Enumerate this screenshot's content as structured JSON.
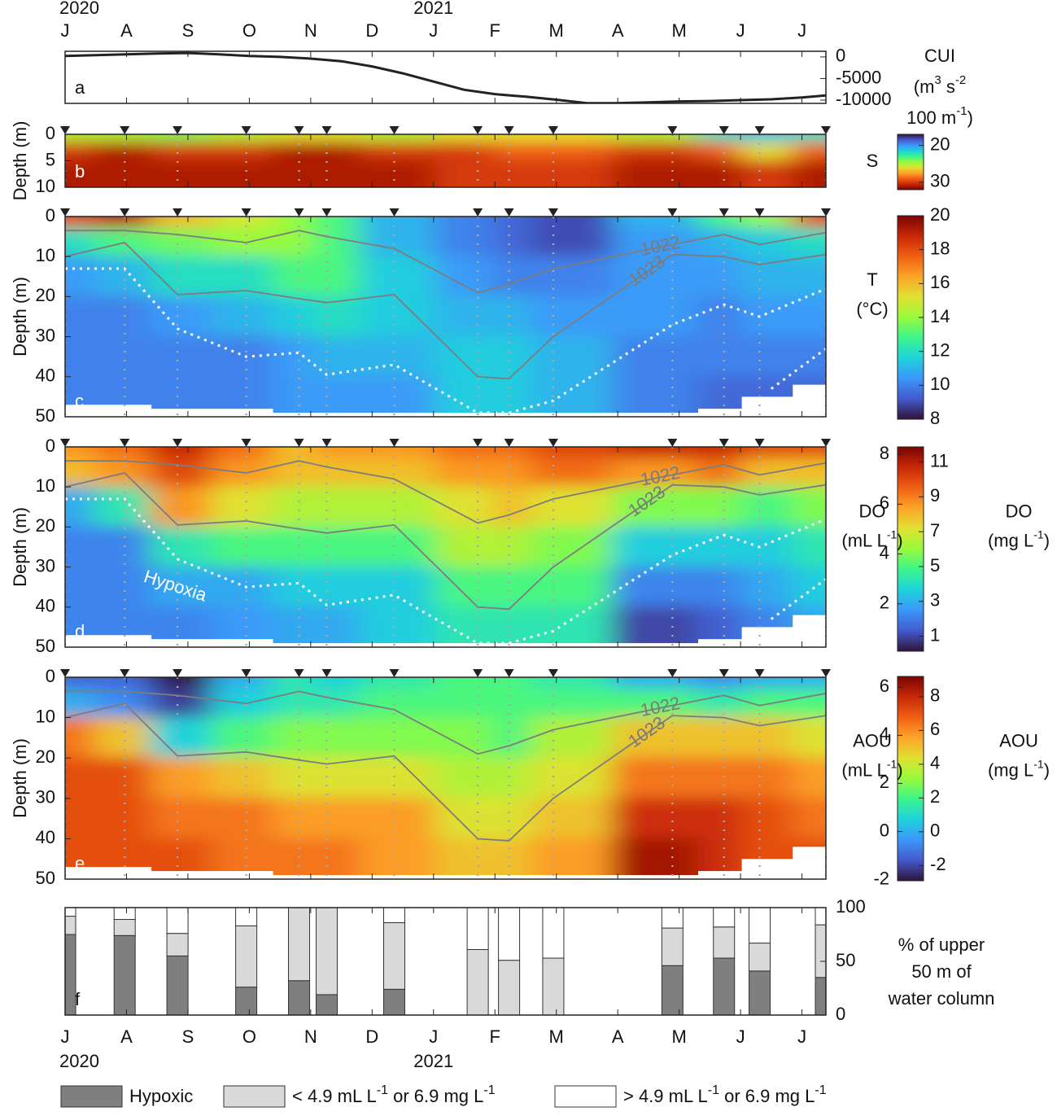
{
  "chart_data": [
    {
      "type": "line",
      "label": "a",
      "ylabel": [
        [
          "CUI"
        ],
        [
          "(m",
          "3",
          " s",
          "-2"
        ],
        [
          "100 m",
          "-1",
          ")"
        ]
      ],
      "x": [
        0,
        0.5,
        1,
        1.5,
        2,
        2.5,
        3,
        3.5,
        4,
        4.5,
        5,
        5.5,
        6,
        6.5,
        7,
        7.5,
        8,
        8.5,
        9,
        9.5,
        10,
        10.5,
        11,
        11.5,
        12,
        12.39
      ],
      "values": [
        200,
        400,
        600,
        800,
        900,
        600,
        200,
        0,
        -400,
        -1000,
        -2200,
        -3800,
        -5700,
        -7600,
        -8600,
        -9200,
        -9900,
        -10700,
        -10700,
        -10500,
        -10300,
        -10200,
        -10000,
        -9800,
        -9400,
        -8900
      ],
      "color": "#222222",
      "xlim": [
        0,
        12.39
      ],
      "xticks": [
        {
          "value": 0,
          "label": "J"
        },
        {
          "value": 1,
          "label": "A"
        },
        {
          "value": 2,
          "label": "S"
        },
        {
          "value": 3,
          "label": "O"
        },
        {
          "value": 4,
          "label": "N"
        },
        {
          "value": 5,
          "label": "D"
        },
        {
          "value": 6,
          "label": "J"
        },
        {
          "value": 7,
          "label": "F"
        },
        {
          "value": 8,
          "label": "M"
        },
        {
          "value": 9,
          "label": "A"
        },
        {
          "value": 10,
          "label": "M"
        },
        {
          "value": 11,
          "label": "J"
        },
        {
          "value": 12,
          "label": "J"
        }
      ],
      "year_labels": [
        {
          "value": 0,
          "label": "2020"
        },
        {
          "value": 6,
          "label": "2021"
        }
      ],
      "ylim": [
        -10750,
        1300
      ],
      "yticks": [
        0,
        -5000,
        -10000
      ]
    },
    {
      "type": "heatmap",
      "label": "b",
      "ylabel": "Depth (m)",
      "yreverse": true,
      "x": [
        0,
        0.97,
        1.83,
        2.95,
        3.81,
        4.26,
        5.36,
        6.72,
        7.23,
        7.95,
        9.89,
        10.73,
        11.31,
        12.39
      ],
      "depth_edges": [
        0,
        1.5,
        5,
        10
      ],
      "values": [
        [
          25,
          30,
          31
        ],
        [
          25,
          31,
          31
        ],
        [
          24,
          30,
          31
        ],
        [
          25,
          30,
          31
        ],
        [
          26,
          31,
          31
        ],
        [
          26,
          31,
          31
        ],
        [
          25,
          30,
          31
        ],
        [
          26,
          30,
          30
        ],
        [
          26,
          29,
          30
        ],
        [
          26,
          29,
          30
        ],
        [
          25,
          30,
          31
        ],
        [
          22,
          29,
          31
        ],
        [
          21,
          26,
          30
        ],
        [
          22,
          29,
          31
        ]
      ],
      "xlim": [
        0,
        12.39
      ],
      "xticks": [
        0,
        1,
        2,
        3,
        4,
        5,
        6,
        7,
        8,
        9,
        10,
        11,
        12
      ],
      "ylim": [
        0,
        10
      ],
      "yticks": [
        0,
        5,
        10
      ],
      "clim": [
        17,
        32
      ],
      "cticks": [
        20,
        30
      ],
      "colorbar_reversed": true,
      "clabel": [
        [
          "S"
        ]
      ]
    },
    {
      "type": "heatmap",
      "label": "c",
      "ylabel": "Depth (m)",
      "yreverse": true,
      "x": [
        0,
        0.97,
        1.83,
        2.95,
        3.81,
        4.26,
        5.36,
        6.72,
        7.23,
        7.95,
        9.89,
        10.73,
        11.31,
        12.39
      ],
      "depth_edges": [
        0,
        3,
        10,
        20,
        30,
        40,
        50
      ],
      "values": [
        [
          18,
          12,
          10.5,
          10,
          10,
          10
        ],
        [
          19,
          13,
          11,
          10,
          10,
          10
        ],
        [
          16,
          13.5,
          12,
          10.5,
          10,
          10
        ],
        [
          15,
          14,
          12,
          11,
          10,
          10
        ],
        [
          14,
          14,
          13,
          11.5,
          10.5,
          10.5
        ],
        [
          13,
          13,
          13,
          12,
          11,
          10.5
        ],
        [
          11,
          11,
          11.5,
          11.5,
          11,
          10.5
        ],
        [
          10,
          10,
          10.5,
          11,
          11.5,
          11.5
        ],
        [
          9.5,
          9.5,
          10,
          11,
          11.5,
          11.5
        ],
        [
          9,
          9,
          10,
          10.5,
          11,
          11
        ],
        [
          11,
          10.5,
          10.5,
          10.5,
          10,
          10
        ],
        [
          13,
          11,
          10.5,
          10,
          10,
          9.5
        ],
        [
          14,
          11.5,
          11,
          10.5,
          10,
          9.5
        ],
        [
          18,
          12,
          11,
          10.5,
          10,
          9.5
        ]
      ],
      "bottom_depth": [
        47,
        47,
        48,
        48,
        49,
        49,
        49,
        49,
        49,
        49,
        49,
        48,
        45,
        42
      ],
      "contours": [
        {
          "name": "1022",
          "values": [
            3.5,
            3.5,
            4.5,
            6.5,
            3.5,
            5,
            8,
            19,
            17,
            13,
            7,
            4.5,
            7,
            4
          ]
        },
        {
          "name": "1023",
          "values": [
            10,
            6.5,
            19.5,
            18.5,
            20.5,
            21.5,
            19.5,
            40,
            40.5,
            30,
            9.5,
            10,
            12,
            9.5
          ]
        }
      ],
      "dotted": [
        {
          "x": [
            0,
            0.97,
            1.83,
            2.95,
            3.81,
            4.26,
            5.36,
            6.72,
            7.23,
            7.95,
            9.89,
            10.73,
            11.31,
            12.39
          ],
          "values": [
            13,
            13,
            28,
            35,
            34,
            39.5,
            37,
            49,
            49,
            46,
            27,
            22,
            25,
            18
          ]
        },
        {
          "x": [
            11.5,
            12.39
          ],
          "values": [
            43,
            33
          ]
        }
      ],
      "xlim": [
        0,
        12.39
      ],
      "xticks": [
        0,
        1,
        2,
        3,
        4,
        5,
        6,
        7,
        8,
        9,
        10,
        11,
        12
      ],
      "ylim": [
        0,
        50
      ],
      "yticks": [
        0,
        10,
        20,
        30,
        40,
        50
      ],
      "clim": [
        8,
        20
      ],
      "cticks": [
        8,
        10,
        12,
        14,
        16,
        18,
        20
      ],
      "clabel": [
        [
          "T"
        ],
        [
          "(°C)"
        ]
      ]
    },
    {
      "type": "heatmap",
      "label": "d",
      "ylabel": "Depth (m)",
      "yreverse": true,
      "annotation": "Hypoxia",
      "x": [
        0,
        0.97,
        1.83,
        2.95,
        3.81,
        4.26,
        5.36,
        6.72,
        7.23,
        7.95,
        9.89,
        10.73,
        11.31,
        12.39
      ],
      "depth_edges": [
        0,
        3,
        10,
        20,
        30,
        40,
        50
      ],
      "values": [
        [
          6,
          5.5,
          2,
          1.5,
          1.5,
          1.5
        ],
        [
          6.5,
          6,
          3,
          1.5,
          1.5,
          1.5
        ],
        [
          7.5,
          7,
          6,
          3,
          2,
          1.5
        ],
        [
          6.5,
          6,
          5,
          3.5,
          2,
          1.8
        ],
        [
          5.5,
          5.5,
          4.5,
          3.5,
          2.5,
          2
        ],
        [
          6,
          5.5,
          4.5,
          3.5,
          2.5,
          2
        ],
        [
          6,
          5.5,
          4.5,
          3.5,
          2.5,
          2.5
        ],
        [
          6.5,
          6,
          5,
          4.5,
          3.5,
          3
        ],
        [
          6.5,
          6,
          5.5,
          4.5,
          3.5,
          3
        ],
        [
          7,
          6.5,
          5,
          4,
          3.5,
          3
        ],
        [
          7.5,
          6,
          4,
          2.5,
          1.5,
          0.7
        ],
        [
          7.5,
          6.5,
          4,
          2.5,
          1.5,
          1
        ],
        [
          7,
          5.5,
          3.5,
          2.5,
          2,
          1.5
        ],
        [
          7,
          5.5,
          4,
          3,
          2.5,
          2
        ]
      ],
      "bottom_depth": [
        47,
        47,
        48,
        48,
        49,
        49,
        49,
        49,
        49,
        49,
        49,
        48,
        45,
        42
      ],
      "contours": [
        {
          "name": "1022",
          "values": [
            3.5,
            3.5,
            4.5,
            6.5,
            3.5,
            5,
            8,
            19,
            17,
            13,
            7,
            4.5,
            7,
            4
          ]
        },
        {
          "name": "1023",
          "values": [
            10,
            6.5,
            19.5,
            18.5,
            20.5,
            21.5,
            19.5,
            40,
            40.5,
            30,
            9.5,
            10,
            12,
            9.5
          ]
        }
      ],
      "dotted": [
        {
          "x": [
            0,
            0.97,
            1.83,
            2.95,
            3.81,
            4.26,
            5.36,
            6.72,
            7.23,
            7.95,
            9.89,
            10.73,
            11.31,
            12.39
          ],
          "values": [
            13,
            13,
            28,
            35,
            34,
            39.5,
            37,
            49,
            49,
            46,
            27,
            22,
            25,
            18
          ]
        },
        {
          "x": [
            11.5,
            12.39
          ],
          "values": [
            43,
            33
          ]
        }
      ],
      "xlim": [
        0,
        12.39
      ],
      "xticks": [
        0,
        1,
        2,
        3,
        4,
        5,
        6,
        7,
        8,
        9,
        10,
        11,
        12
      ],
      "ylim": [
        0,
        50
      ],
      "yticks": [
        0,
        10,
        20,
        30,
        40,
        50
      ],
      "clim": [
        0.1,
        8.3
      ],
      "cticks": [
        2,
        4,
        6,
        8
      ],
      "clabel": [
        [
          "DO"
        ],
        [
          "(mL L",
          "-1",
          ")"
        ]
      ],
      "c2lim": [
        0.14,
        11.87
      ],
      "c2ticks": [
        1,
        3,
        5,
        7,
        9,
        11
      ],
      "c2label": [
        [
          "DO"
        ],
        [
          "(mg L",
          "-1",
          ")"
        ]
      ]
    },
    {
      "type": "heatmap",
      "label": "e",
      "ylabel": "Depth (m)",
      "yreverse": true,
      "x": [
        0,
        0.97,
        1.83,
        2.95,
        3.81,
        4.26,
        5.36,
        6.72,
        7.23,
        7.95,
        9.89,
        10.73,
        11.31,
        12.39
      ],
      "depth_edges": [
        0,
        3,
        10,
        20,
        30,
        40,
        50
      ],
      "values": [
        [
          -1,
          0,
          4.5,
          5,
          5,
          5
        ],
        [
          -1,
          -0.5,
          3.5,
          5,
          5,
          5
        ],
        [
          -2,
          -1.5,
          0.5,
          4,
          4.5,
          5
        ],
        [
          0,
          0.5,
          1.5,
          3.5,
          4.5,
          4.5
        ],
        [
          1,
          1,
          2,
          3,
          4,
          4.5
        ],
        [
          0.5,
          1,
          2,
          3,
          4,
          4.5
        ],
        [
          1,
          1.5,
          2,
          3,
          4,
          4
        ],
        [
          1.5,
          1.5,
          2,
          2.5,
          3,
          3.5
        ],
        [
          1.5,
          1.5,
          1.5,
          2.5,
          3,
          3.5
        ],
        [
          1,
          1.5,
          2.5,
          3,
          3.5,
          4
        ],
        [
          0,
          1.5,
          3.5,
          4.5,
          5.5,
          6
        ],
        [
          -0.5,
          1,
          3.5,
          4.5,
          5.5,
          5.5
        ],
        [
          0,
          1.5,
          3.5,
          4.5,
          5,
          5
        ],
        [
          0,
          1.5,
          3,
          4,
          4.5,
          5
        ]
      ],
      "bottom_depth": [
        47,
        47,
        48,
        48,
        49,
        49,
        49,
        49,
        49,
        49,
        49,
        48,
        45,
        42
      ],
      "contours": [
        {
          "name": "1022",
          "values": [
            3.5,
            3.5,
            4.5,
            6.5,
            3.5,
            5,
            8,
            19,
            17,
            13,
            7,
            4.5,
            7,
            4
          ]
        },
        {
          "name": "1023",
          "values": [
            10,
            6.5,
            19.5,
            18.5,
            20.5,
            21.5,
            19.5,
            40,
            40.5,
            30,
            9.5,
            10,
            12,
            9.5
          ]
        }
      ],
      "xlim": [
        0,
        12.39
      ],
      "xticks": [
        0,
        1,
        2,
        3,
        4,
        5,
        6,
        7,
        8,
        9,
        10,
        11,
        12
      ],
      "ylim": [
        0,
        50
      ],
      "yticks": [
        0,
        10,
        20,
        30,
        40,
        50
      ],
      "clim": [
        -2.05,
        6.45
      ],
      "cticks": [
        -2,
        0,
        2,
        4,
        6
      ],
      "clabel": [
        [
          "AOU"
        ],
        [
          "(mL L",
          "-1",
          ")"
        ]
      ],
      "c2lim": [
        -2.9,
        9.2
      ],
      "c2ticks": [
        -2,
        0,
        2,
        4,
        6,
        8
      ],
      "c2label": [
        [
          "AOU"
        ],
        [
          "(mg L",
          "-1",
          ")"
        ]
      ]
    },
    {
      "type": "bar",
      "stacked": true,
      "label": "f",
      "ylabel": [
        [
          "% of upper"
        ],
        [
          "50 m of"
        ],
        [
          "water column"
        ]
      ],
      "x": [
        0,
        0.97,
        1.83,
        2.95,
        3.81,
        4.26,
        5.36,
        6.72,
        7.23,
        7.95,
        9.89,
        10.73,
        11.31,
        12.39
      ],
      "series": [
        {
          "name": [
            "Hypoxic"
          ],
          "color": "#7f7f7f",
          "values": [
            75,
            74,
            55,
            26,
            32,
            19,
            24,
            0,
            0,
            0,
            46,
            53,
            41,
            35
          ]
        },
        {
          "name": [
            "< 4.9 mL L",
            "-1",
            " or 6.9 mg L",
            "-1"
          ],
          "color": "#d9d9d9",
          "values": [
            17,
            15,
            21,
            57,
            68,
            81,
            62,
            61,
            51,
            53,
            35,
            29,
            26,
            49
          ]
        },
        {
          "name": [
            "> 4.9 mL L",
            "-1",
            " or 6.9 mg L",
            "-1"
          ],
          "color": "#ffffff",
          "values": [
            8,
            11,
            24,
            17,
            0,
            0,
            14,
            39,
            49,
            47,
            19,
            18,
            33,
            16
          ]
        }
      ],
      "xlim": [
        0,
        12.39
      ],
      "xticks": [
        {
          "value": 0,
          "label": "J"
        },
        {
          "value": 1,
          "label": "A"
        },
        {
          "value": 2,
          "label": "S"
        },
        {
          "value": 3,
          "label": "O"
        },
        {
          "value": 4,
          "label": "N"
        },
        {
          "value": 5,
          "label": "D"
        },
        {
          "value": 6,
          "label": "J"
        },
        {
          "value": 7,
          "label": "F"
        },
        {
          "value": 8,
          "label": "M"
        },
        {
          "value": 9,
          "label": "A"
        },
        {
          "value": 10,
          "label": "M"
        },
        {
          "value": 11,
          "label": "J"
        },
        {
          "value": 12,
          "label": "J"
        }
      ],
      "year_labels": [
        {
          "value": 0,
          "label": "2020"
        },
        {
          "value": 6,
          "label": "2021"
        }
      ],
      "ylim": [
        0,
        100
      ],
      "yticks": [
        0,
        50,
        100
      ]
    }
  ]
}
